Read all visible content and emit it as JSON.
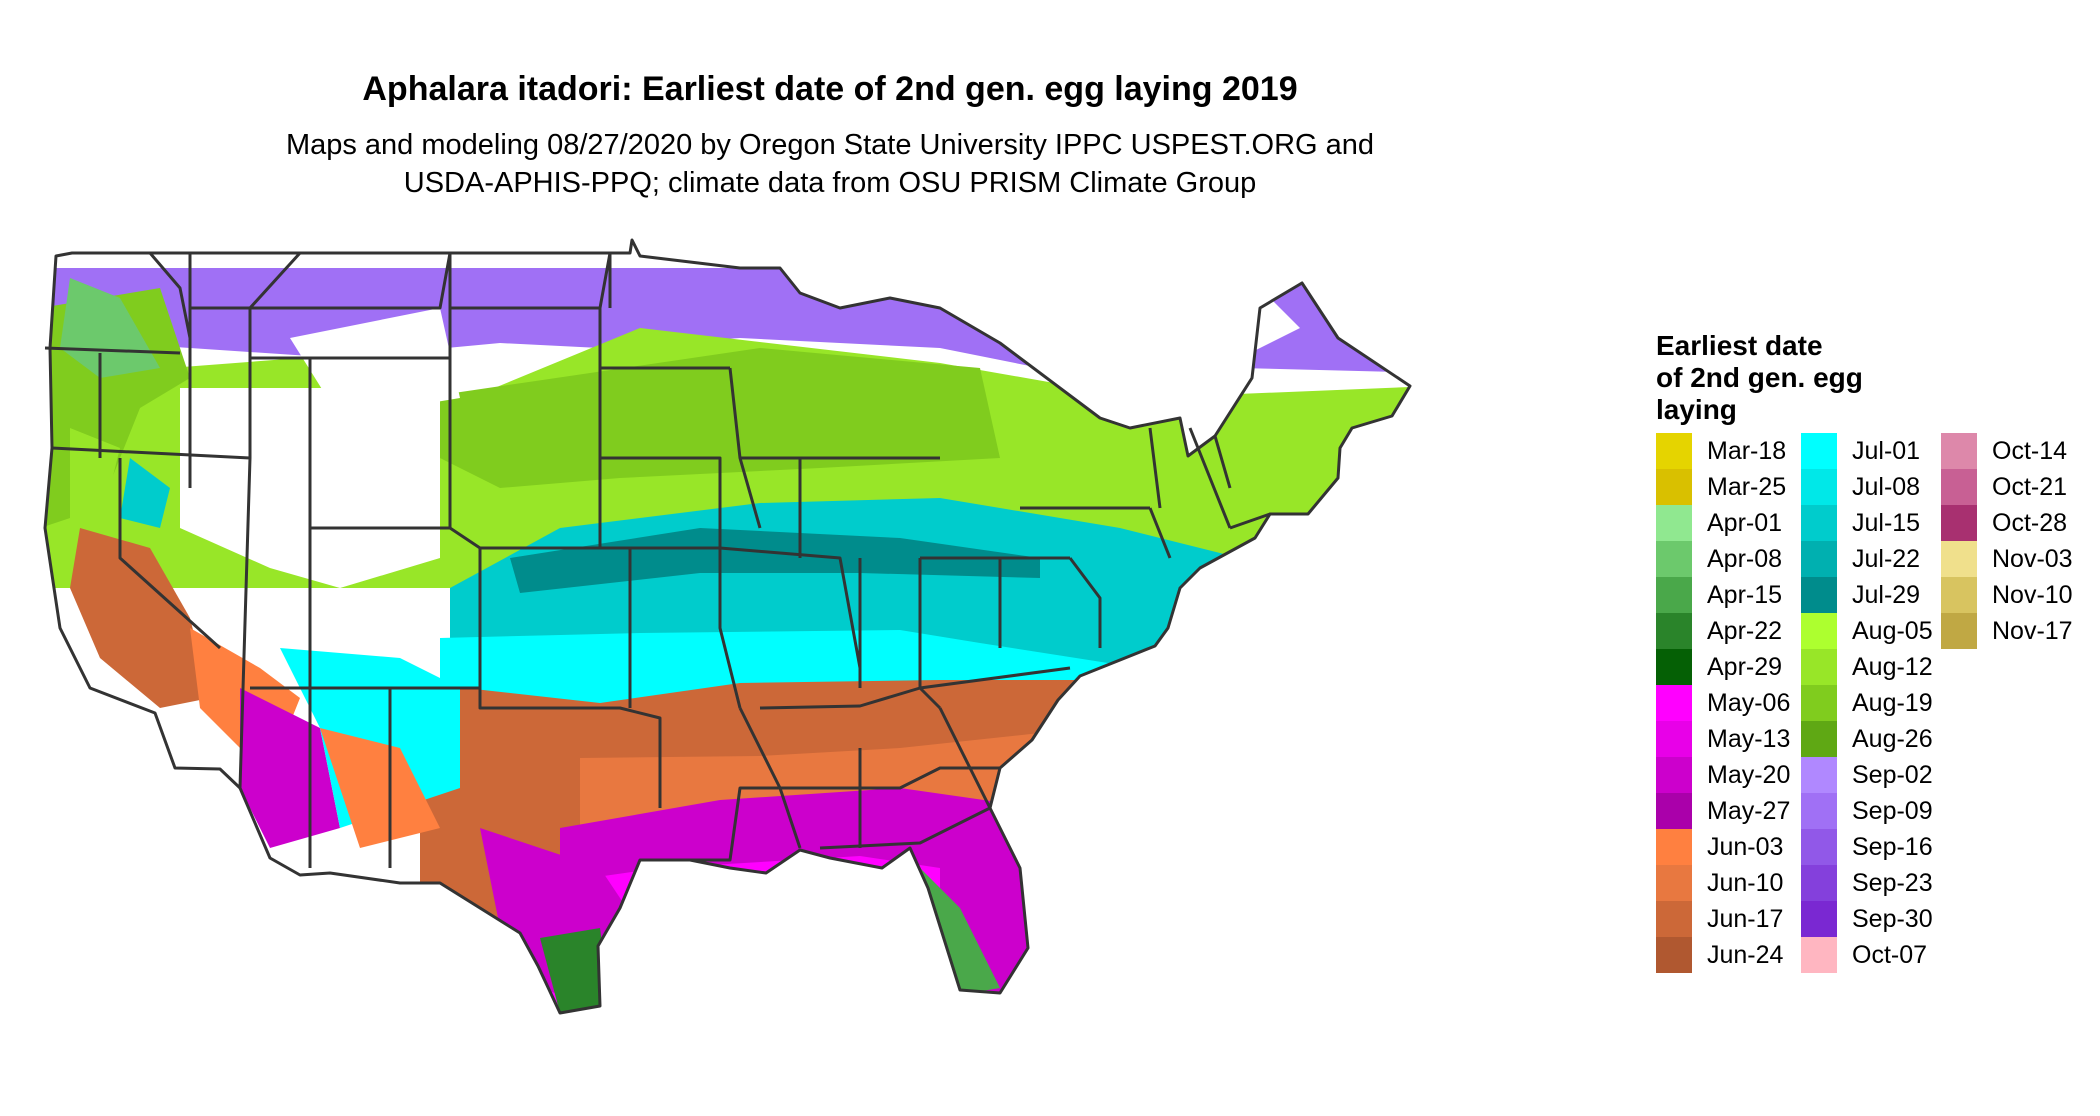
{
  "title": "Aphalara itadori: Earliest date of 2nd gen. egg laying 2019",
  "subtitle_line1": "Maps and modeling 08/27/2020 by Oregon State University IPPC USPEST.ORG and",
  "subtitle_line2": "USDA-APHIS-PPQ; climate data from OSU PRISM Climate Group",
  "legend": {
    "title_lines": [
      "Earliest date",
      "of 2nd gen. egg",
      "laying"
    ],
    "columns": [
      [
        {
          "label": "Mar-18",
          "color": "#e5d400"
        },
        {
          "label": "Mar-25",
          "color": "#d9c000"
        },
        {
          "label": "Apr-01",
          "color": "#90e890"
        },
        {
          "label": "Apr-08",
          "color": "#6cc96c"
        },
        {
          "label": "Apr-15",
          "color": "#4aa84a"
        },
        {
          "label": "Apr-22",
          "color": "#2a842a"
        },
        {
          "label": "Apr-29",
          "color": "#056005"
        },
        {
          "label": "May-06",
          "color": "#ff00ff"
        },
        {
          "label": "May-13",
          "color": "#e800e8"
        },
        {
          "label": "May-20",
          "color": "#cc00cc"
        },
        {
          "label": "May-27",
          "color": "#aa00aa"
        },
        {
          "label": "Jun-03",
          "color": "#ff8040"
        },
        {
          "label": "Jun-10",
          "color": "#e87840"
        },
        {
          "label": "Jun-17",
          "color": "#cc6838"
        },
        {
          "label": "Jun-24",
          "color": "#b05830"
        }
      ],
      [
        {
          "label": "Jul-01",
          "color": "#00ffff"
        },
        {
          "label": "Jul-08",
          "color": "#00e8e8"
        },
        {
          "label": "Jul-15",
          "color": "#00cccc"
        },
        {
          "label": "Jul-22",
          "color": "#00b0b0"
        },
        {
          "label": "Jul-29",
          "color": "#008c8c"
        },
        {
          "label": "Aug-05",
          "color": "#adff2f"
        },
        {
          "label": "Aug-12",
          "color": "#98e628"
        },
        {
          "label": "Aug-19",
          "color": "#80cc1e"
        },
        {
          "label": "Aug-26",
          "color": "#5fa814"
        },
        {
          "label": "Sep-02",
          "color": "#b088ff"
        },
        {
          "label": "Sep-09",
          "color": "#a070f5"
        },
        {
          "label": "Sep-16",
          "color": "#9158e8"
        },
        {
          "label": "Sep-23",
          "color": "#8440dc"
        },
        {
          "label": "Sep-30",
          "color": "#7a28d2"
        },
        {
          "label": "Oct-07",
          "color": "#ffb6c1"
        }
      ],
      [
        {
          "label": "Oct-14",
          "color": "#dd88aa"
        },
        {
          "label": "Oct-21",
          "color": "#c86094"
        },
        {
          "label": "Oct-28",
          "color": "#a83070"
        },
        {
          "label": "Nov-03",
          "color": "#f0e08c"
        },
        {
          "label": "Nov-10",
          "color": "#d8c460"
        },
        {
          "label": "Nov-17",
          "color": "#c0a844"
        }
      ]
    ]
  }
}
